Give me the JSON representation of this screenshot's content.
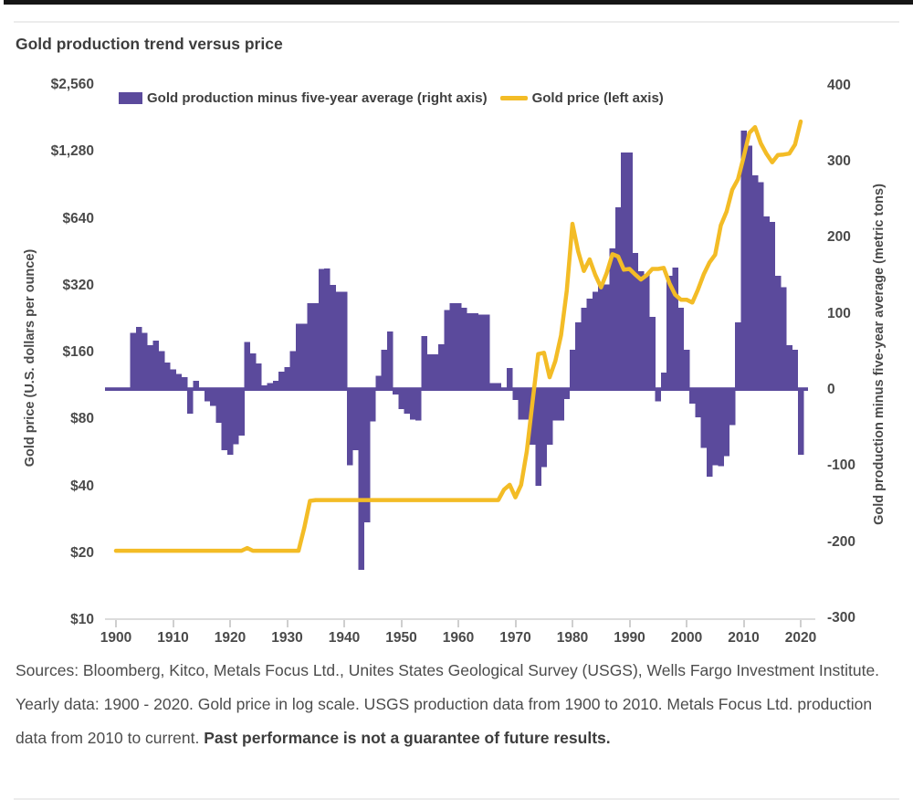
{
  "page": {
    "title": "Gold production trend versus price",
    "source_regular": "Sources: Bloomberg, Kitco, Metals Focus Ltd., Unites States Geological Survey (USGS), Wells Fargo Investment Institute. Yearly data: 1900 - 2020. Gold price in log scale. USGS production data from 1900 to 2010. Metals Focus Ltd. production data from 2010 to current. ",
    "source_bold": "Past performance is not a guarantee of future results."
  },
  "colors": {
    "bars": "#5b4a9c",
    "line": "#f3bc26",
    "axis_text": "#4a4a4a",
    "top_border": "#161616",
    "divider": "#ececec"
  },
  "chart_data": {
    "type": "combo",
    "title": "Gold production trend versus price",
    "start_year": 1900,
    "end_year": 2020,
    "x_ticks": [
      1900,
      1910,
      1920,
      1930,
      1940,
      1950,
      1960,
      1970,
      1980,
      1990,
      2000,
      2010,
      2020
    ],
    "left_axis": {
      "label": "Gold price (U.S. dollars per ounce)",
      "scale": "log2",
      "tick_labels": [
        "$2,560",
        "$1,280",
        "$640",
        "$320",
        "$160",
        "$80",
        "$40",
        "$20",
        "$10"
      ],
      "tick_values": [
        2560,
        1280,
        640,
        320,
        160,
        80,
        40,
        20,
        10
      ]
    },
    "right_axis": {
      "label": "Gold production minus five-year average (metric tons)",
      "tick_values": [
        400,
        300,
        200,
        100,
        0,
        -100,
        -200,
        -300
      ]
    },
    "legend": {
      "bars_label": "Gold production minus five-year average (right axis)",
      "line_label": "Gold price (left axis)"
    },
    "series": [
      {
        "name": "Gold production minus five-year average (right axis)",
        "type": "bar",
        "axis": "right",
        "values": [
          0,
          0,
          0,
          76,
          84,
          76,
          60,
          66,
          52,
          37,
          28,
          22,
          18,
          -30,
          13,
          0,
          -14,
          -20,
          -42,
          -78,
          -84,
          -70,
          -59,
          64,
          49,
          36,
          7,
          10,
          13,
          25,
          31,
          52,
          88,
          88,
          115,
          115,
          160,
          161,
          139,
          130,
          130,
          -98,
          -78,
          -235,
          -173,
          -40,
          20,
          54,
          78,
          -5,
          -24,
          -30,
          -38,
          -39,
          72,
          48,
          48,
          61,
          106,
          115,
          115,
          109,
          102,
          102,
          100,
          100,
          10,
          10,
          0,
          30,
          -12,
          -38,
          -38,
          -71,
          -125,
          -100,
          -71,
          -39,
          -39,
          -11,
          54,
          90,
          109,
          121,
          130,
          140,
          140,
          187,
          241,
          313,
          313,
          181,
          157,
          153,
          97,
          -14,
          24,
          151,
          162,
          109,
          54,
          -17,
          -35,
          -75,
          -113,
          -98,
          -99,
          -86,
          -45,
          90,
          342,
          322,
          283,
          274,
          229,
          222,
          151,
          136,
          60,
          54,
          -84
        ]
      },
      {
        "name": "Gold price (left axis)",
        "type": "line",
        "axis": "left",
        "values": [
          20.7,
          20.7,
          20.7,
          20.7,
          20.7,
          20.7,
          20.7,
          20.7,
          20.7,
          20.7,
          20.7,
          20.7,
          20.7,
          20.7,
          20.7,
          20.7,
          20.7,
          20.7,
          20.7,
          20.7,
          20.7,
          20.7,
          20.7,
          21.3,
          20.7,
          20.7,
          20.7,
          20.7,
          20.7,
          20.7,
          20.7,
          20.7,
          20.7,
          26.3,
          34.7,
          35,
          35,
          35,
          35,
          35,
          35,
          35,
          35,
          35,
          35,
          35,
          35,
          35,
          35,
          35,
          35,
          35,
          35,
          35,
          35,
          35,
          35,
          35,
          35,
          35,
          35,
          35,
          35,
          35,
          35,
          35,
          35,
          35,
          39,
          41,
          36,
          41,
          58,
          97,
          159,
          161,
          125,
          148,
          193,
          307,
          613,
          460,
          376,
          424,
          361,
          317,
          368,
          447,
          437,
          381,
          384,
          362,
          344,
          360,
          384,
          384,
          388,
          331,
          294,
          279,
          279,
          271,
          310,
          363,
          410,
          445,
          603,
          695,
          872,
          972,
          1225,
          1572,
          1669,
          1411,
          1266,
          1160,
          1251,
          1257,
          1268,
          1393,
          1770
        ]
      }
    ]
  }
}
